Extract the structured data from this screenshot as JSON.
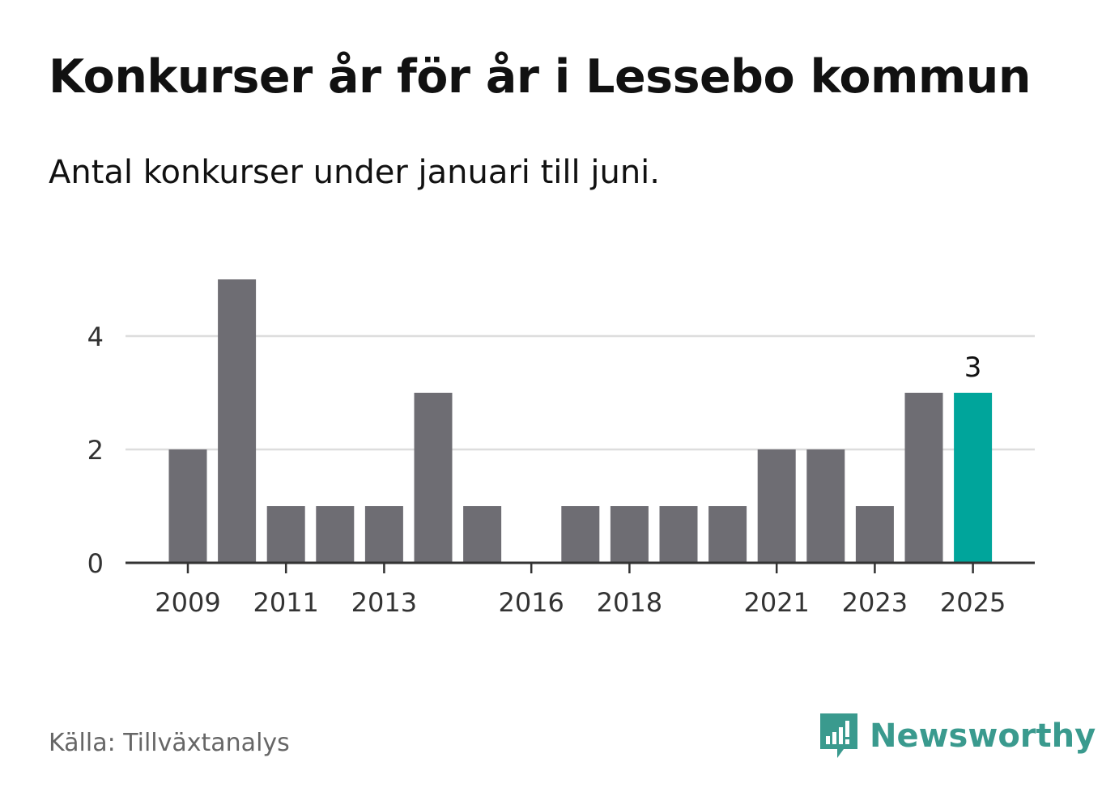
{
  "header": {
    "title": "Konkurser år för år i Lessebo kommun",
    "subtitle": "Antal konkurser under januari till juni."
  },
  "footer": {
    "source": "Källa: Tillväxtanalys",
    "brand": "Newsworthy",
    "brand_icon": "newsworthy-logo-icon",
    "brand_color": "#3a9a8e"
  },
  "chart_data": {
    "type": "bar",
    "categories": [
      "2009",
      "2010",
      "2011",
      "2012",
      "2013",
      "2014",
      "2015",
      "2016",
      "2017",
      "2018",
      "2019",
      "2020",
      "2021",
      "2022",
      "2023",
      "2024",
      "2025"
    ],
    "values": [
      2,
      5,
      1,
      1,
      1,
      3,
      1,
      0,
      1,
      1,
      1,
      1,
      2,
      2,
      1,
      3,
      3
    ],
    "x_tick_labels": [
      "2009",
      "2011",
      "2013",
      "2016",
      "2018",
      "2021",
      "2023",
      "2025"
    ],
    "y_ticks": [
      0,
      2,
      4
    ],
    "ylim": [
      0,
      5
    ],
    "grid": true,
    "bar_color": "#6e6d73",
    "highlight_color": "#00a59b",
    "highlight_category": "2025",
    "data_labels": [
      {
        "category": "2025",
        "text": "3"
      }
    ],
    "xlabel": "",
    "ylabel": ""
  }
}
